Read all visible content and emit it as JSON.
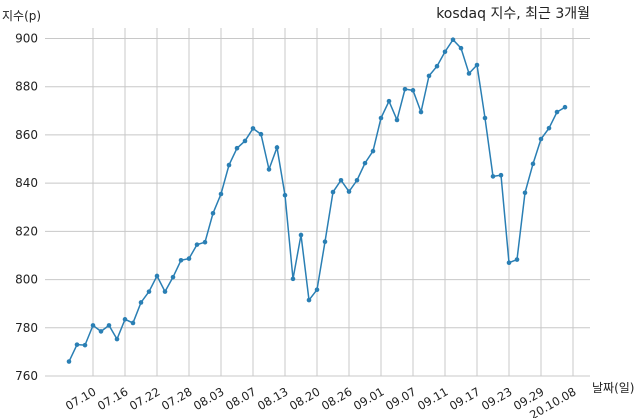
{
  "chart_data": {
    "type": "line",
    "title": "kosdaq 지수, 최근 3개월",
    "ylabel": "지수(p)",
    "xlabel": "날짜(일)",
    "ylim": [
      760,
      905
    ],
    "yticks": [
      760,
      780,
      800,
      820,
      840,
      860,
      880,
      900
    ],
    "grid": true,
    "x_tick_labels": [
      "07.10",
      "07.16",
      "07.22",
      "07.28",
      "08.03",
      "08.07",
      "08.13",
      "08.20",
      "08.26",
      "09.01",
      "09.07",
      "09.11",
      "09.17",
      "09.23",
      "09.29",
      "20.10.08"
    ],
    "x_tick_index": [
      3,
      7,
      11,
      15,
      19,
      23,
      27,
      31,
      35,
      39,
      43,
      47,
      51,
      55,
      59,
      63
    ],
    "series": [
      {
        "color": "#2a7fb4",
        "values": [
          766,
          773,
          772.8,
          781,
          778.5,
          781,
          775.3,
          783.5,
          782,
          790.5,
          795,
          801.5,
          795,
          801,
          808,
          808.7,
          814.5,
          815.5,
          827.5,
          835.5,
          847.5,
          854.5,
          857.5,
          862.7,
          860.3,
          845.7,
          854.8,
          835,
          800.3,
          818.5,
          791.5,
          795.8,
          815.7,
          836.3,
          841.2,
          836.5,
          841.2,
          848.3,
          853.3,
          867,
          874,
          866.2,
          879,
          878.5,
          869.5,
          884.5,
          888.5,
          894.5,
          899.5,
          896,
          885.5,
          889,
          867,
          842.8,
          843.3,
          807,
          808.3,
          836,
          848,
          858.3,
          862.8,
          869.5,
          871.5
        ]
      }
    ]
  }
}
